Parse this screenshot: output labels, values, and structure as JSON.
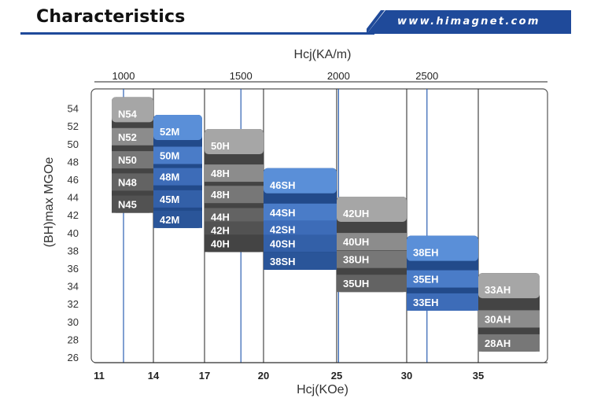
{
  "header": {
    "title": "Characteristics",
    "website": "www.himagnet.com",
    "accent_color": "#1f4a9a"
  },
  "chart_data": {
    "type": "bar",
    "title": "",
    "xlabel": "Hcj(KOe)",
    "x2label": "Hcj(KA/m)",
    "ylabel": "(BH)max MGOe",
    "x_ticks": [
      11,
      14,
      17,
      20,
      25,
      30,
      35
    ],
    "x2_ticks": [
      1000,
      1500,
      2000,
      2500
    ],
    "y_ticks": [
      26,
      28,
      30,
      32,
      34,
      36,
      38,
      40,
      42,
      44,
      46,
      48,
      50,
      52,
      54
    ],
    "xlim": [
      11,
      35
    ],
    "ylim": [
      26,
      54
    ],
    "grid": true,
    "series": [
      {
        "name": "N",
        "x_range": [
          12,
          14
        ],
        "color": "gray",
        "grades": [
          {
            "label": "N54",
            "y": 53.4
          },
          {
            "label": "N52",
            "y": 50.8
          },
          {
            "label": "N50",
            "y": 48.2
          },
          {
            "label": "N48",
            "y": 45.7
          },
          {
            "label": "N45",
            "y": 43.2
          }
        ]
      },
      {
        "name": "M",
        "x_range": [
          14,
          16
        ],
        "color": "blue",
        "grades": [
          {
            "label": "52M",
            "y": 51.4
          },
          {
            "label": "50M",
            "y": 48.7
          },
          {
            "label": "48M",
            "y": 46.3
          },
          {
            "label": "45M",
            "y": 43.8
          },
          {
            "label": "42M",
            "y": 41.5
          }
        ]
      },
      {
        "name": "H",
        "x_range": [
          17,
          20
        ],
        "color": "gray",
        "grades": [
          {
            "label": "50H",
            "y": 49.8
          },
          {
            "label": "48H",
            "y": 46.7
          },
          {
            "label": "48H",
            "y": 44.3
          },
          {
            "label": "44H",
            "y": 41.8
          },
          {
            "label": "42H",
            "y": 40.3
          },
          {
            "label": "40H",
            "y": 38.8
          }
        ]
      },
      {
        "name": "SH",
        "x_range": [
          20,
          25
        ],
        "color": "blue",
        "grades": [
          {
            "label": "46SH",
            "y": 45.4
          },
          {
            "label": "44SH",
            "y": 42.3
          },
          {
            "label": "42SH",
            "y": 40.4
          },
          {
            "label": "40SH",
            "y": 38.8
          },
          {
            "label": "38SH",
            "y": 36.8
          }
        ]
      },
      {
        "name": "UH",
        "x_range": [
          25,
          30
        ],
        "color": "gray",
        "grades": [
          {
            "label": "42UH",
            "y": 42.2
          },
          {
            "label": "40UH",
            "y": 39.0
          },
          {
            "label": "38UH",
            "y": 37.0
          },
          {
            "label": "35UH",
            "y": 34.3
          }
        ]
      },
      {
        "name": "EH",
        "x_range": [
          30,
          35
        ],
        "color": "blue",
        "grades": [
          {
            "label": "38EH",
            "y": 37.8
          },
          {
            "label": "35EH",
            "y": 34.8
          },
          {
            "label": "33EH",
            "y": 32.2
          }
        ]
      },
      {
        "name": "AH",
        "x_range": [
          35,
          39
        ],
        "color": "gray",
        "grades": [
          {
            "label": "33AH",
            "y": 33.6
          },
          {
            "label": "30AH",
            "y": 30.3
          },
          {
            "label": "28AH",
            "y": 27.6
          }
        ]
      }
    ]
  }
}
